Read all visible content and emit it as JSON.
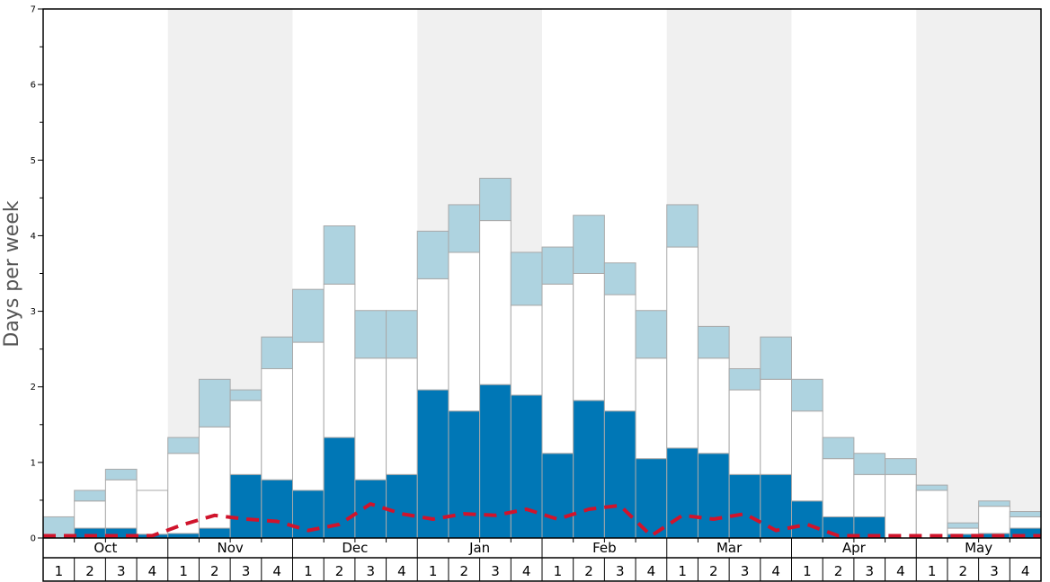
{
  "chart_data": {
    "type": "bar",
    "stacked": true,
    "ylabel": "Days per week",
    "xlabel": "",
    "title": "",
    "ylim": [
      0,
      7
    ],
    "y_major_ticks": [
      "0",
      "1",
      "2",
      "3",
      "4",
      "5",
      "6",
      "7"
    ],
    "months": [
      "Oct",
      "Nov",
      "Dec",
      "Jan",
      "Feb",
      "Mar",
      "Apr",
      "May"
    ],
    "weeks_per_month": [
      "1",
      "2",
      "3",
      "4"
    ],
    "shaded_months": [
      "Nov",
      "Jan",
      "Mar",
      "May"
    ],
    "colors": {
      "dark_segment": "#0077b6",
      "white_segment": "#ffffff",
      "light_segment": "#aed3e0",
      "shading": "#f0f0f0",
      "dashed_line": "#d0142c",
      "bar_stroke": "#a9a9a9",
      "frame": "#000000"
    },
    "series": [
      {
        "key": "dark",
        "values": [
          0,
          0.13,
          0.13,
          0.05,
          0.06,
          0.13,
          0.84,
          0.77,
          0.63,
          1.33,
          0.77,
          0.84,
          1.96,
          1.68,
          2.03,
          1.89,
          1.12,
          1.82,
          1.68,
          1.05,
          1.19,
          1.12,
          0.84,
          0.84,
          0.49,
          0.28,
          0.28,
          0,
          0,
          0.05,
          0.06,
          0.13
        ]
      },
      {
        "key": "white",
        "values": [
          0,
          0.36,
          0.64,
          0.58,
          1.06,
          1.34,
          0.98,
          1.47,
          1.96,
          2.03,
          1.61,
          1.54,
          1.47,
          2.1,
          2.17,
          1.19,
          2.24,
          1.68,
          1.54,
          1.33,
          2.66,
          1.26,
          1.12,
          1.26,
          1.19,
          0.77,
          0.56,
          0.84,
          0.63,
          0.08,
          0.36,
          0.15
        ]
      },
      {
        "key": "light",
        "values": [
          0.28,
          0.14,
          0.14,
          0,
          0.21,
          0.63,
          0.14,
          0.42,
          0.7,
          0.77,
          0.63,
          0.63,
          0.63,
          0.63,
          0.56,
          0.7,
          0.49,
          0.77,
          0.42,
          0.63,
          0.56,
          0.42,
          0.28,
          0.56,
          0.42,
          0.28,
          0.28,
          0.21,
          0.07,
          0.07,
          0.07,
          0.07
        ]
      }
    ],
    "dashed_line_values": [
      0.03,
      0.03,
      0.03,
      0.03,
      0.18,
      0.3,
      0.25,
      0.22,
      0.1,
      0.18,
      0.45,
      0.32,
      0.25,
      0.32,
      0.3,
      0.38,
      0.25,
      0.38,
      0.43,
      0.03,
      0.3,
      0.25,
      0.32,
      0.1,
      0.18,
      0.03,
      0.03,
      0.03,
      0.03,
      0.03,
      0.03,
      0.03
    ]
  }
}
